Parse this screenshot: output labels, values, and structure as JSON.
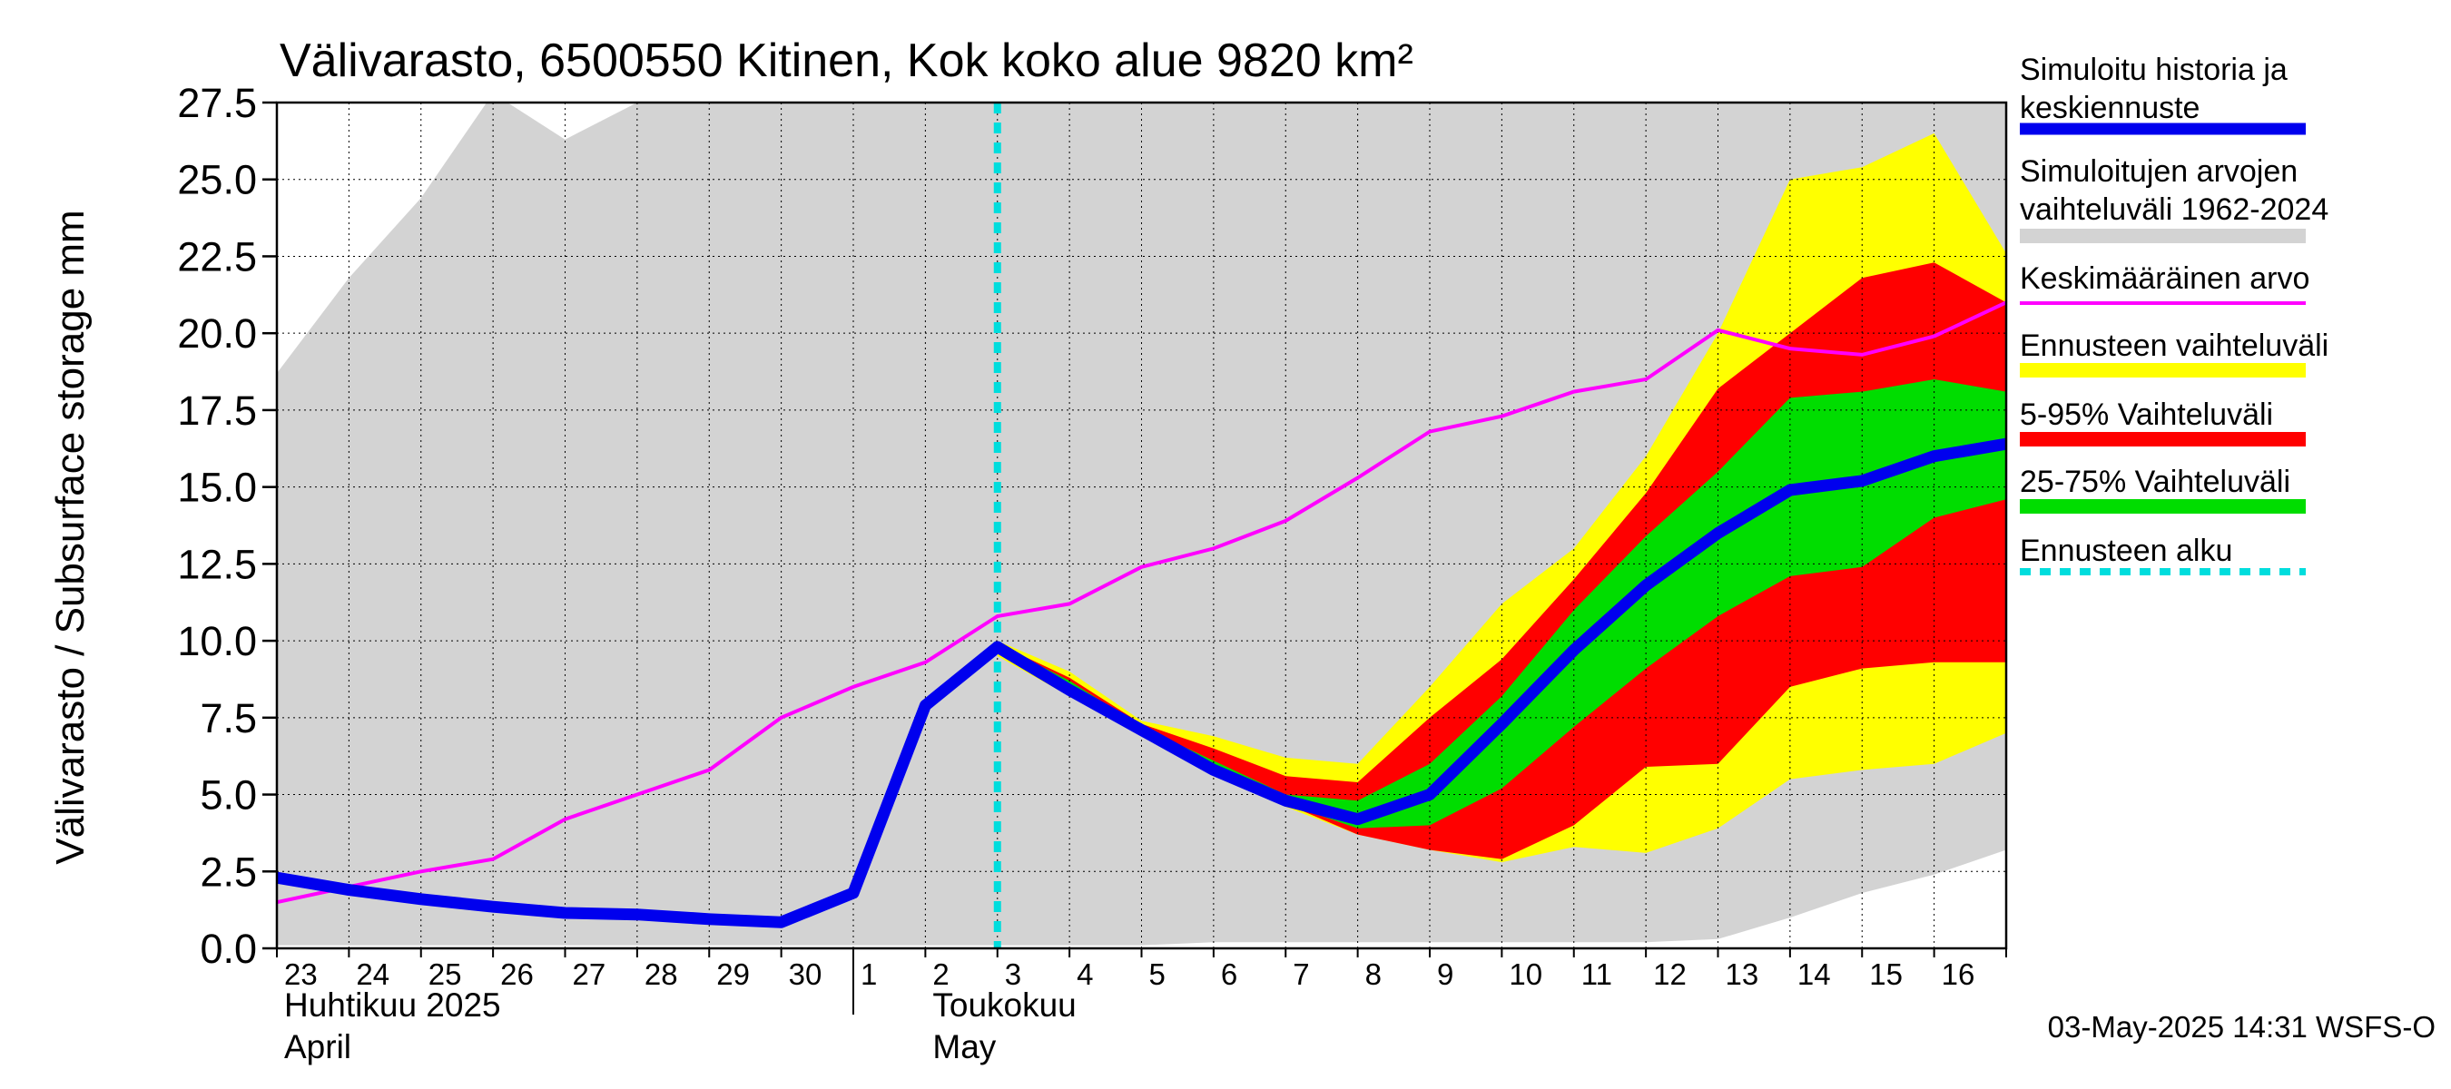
{
  "chart_data": {
    "type": "area",
    "title": "Välivarasto, 6500550 Kitinen, Kok koko alue 9820 km²",
    "ylabel": "Välivarasto / Subsurface storage  mm",
    "xlabel": "",
    "ylim": [
      0,
      27.5
    ],
    "yticks": [
      "0.0",
      "2.5",
      "5.0",
      "7.5",
      "10.0",
      "12.5",
      "15.0",
      "17.5",
      "20.0",
      "22.5",
      "25.0",
      "27.5"
    ],
    "grid": true,
    "legend_position": "right",
    "x_day_labels": [
      "23",
      "24",
      "25",
      "26",
      "27",
      "28",
      "29",
      "30",
      "1",
      "2",
      "3",
      "4",
      "5",
      "6",
      "7",
      "8",
      "9",
      "10",
      "11",
      "12",
      "13",
      "14",
      "15",
      "16"
    ],
    "month_labels": [
      {
        "fi": "Huhtikuu  2025",
        "en": "April"
      },
      {
        "fi": "Toukokuu",
        "en": "May"
      }
    ],
    "forecast_start_x": 10,
    "timestamp": "03-May-2025 14:31 WSFS-O",
    "colors": {
      "history_range": "#d3d3d3",
      "forecast_range": "#ffff00",
      "p5_95": "#ff0000",
      "p25_75": "#00dd00",
      "median": "#0000ee",
      "mean": "#ff00ff",
      "forecast_start": "#00dddd"
    },
    "legend": [
      {
        "label": "Simuloitu historia ja keskiennuste",
        "color": "#0000ee",
        "style": "thick"
      },
      {
        "label": "Simuloitujen arvojen vaihteluväli 1962-2024",
        "color": "#d3d3d3",
        "style": "band"
      },
      {
        "label": "Keskimääräinen arvo",
        "color": "#ff00ff",
        "style": "thin"
      },
      {
        "label": "Ennusteen vaihteluväli",
        "color": "#ffff00",
        "style": "band"
      },
      {
        "label": "5-95% Vaihteluväli",
        "color": "#ff0000",
        "style": "band"
      },
      {
        "label": "25-75% Vaihteluväli",
        "color": "#00dd00",
        "style": "band"
      },
      {
        "label": "Ennusteen alku",
        "color": "#00dddd",
        "style": "dashed"
      }
    ],
    "x": [
      0,
      1,
      2,
      3,
      4,
      5,
      6,
      7,
      8,
      9,
      10,
      11,
      12,
      13,
      14,
      15,
      16,
      17,
      18,
      19,
      20,
      21,
      22,
      23,
      24
    ],
    "history_range": {
      "upper": [
        18.7,
        21.8,
        24.4,
        27.8,
        26.3,
        27.5,
        27.5,
        27.5,
        27.5,
        27.5,
        27.5,
        27.5,
        27.5,
        27.5,
        27.5,
        27.5,
        27.5,
        27.5,
        27.5,
        27.5,
        27.5,
        27.5,
        27.5,
        27.5,
        27.5
      ],
      "lower": [
        0.1,
        0.1,
        0.1,
        0.1,
        0.1,
        0.1,
        0.1,
        0.1,
        0.1,
        0.1,
        0.1,
        0.1,
        0.1,
        0.2,
        0.2,
        0.2,
        0.2,
        0.2,
        0.2,
        0.2,
        0.3,
        1.0,
        1.8,
        2.4,
        3.2
      ]
    },
    "forecast_x": [
      10,
      11,
      12,
      13,
      14,
      15,
      16,
      17,
      18,
      19,
      20,
      21,
      22,
      23,
      24
    ],
    "forecast_range": {
      "upper": [
        10.0,
        9.0,
        7.4,
        6.9,
        6.2,
        6.0,
        8.5,
        11.2,
        13.0,
        16.0,
        20.0,
        25.0,
        25.4,
        26.5,
        22.6
      ],
      "lower": [
        9.5,
        8.2,
        6.9,
        5.6,
        4.6,
        3.7,
        3.2,
        2.8,
        3.3,
        3.1,
        3.9,
        5.5,
        5.8,
        6.0,
        7.0
      ]
    },
    "p5_95": {
      "upper": [
        9.9,
        8.8,
        7.3,
        6.5,
        5.6,
        5.4,
        7.5,
        9.4,
        12.0,
        14.8,
        18.2,
        20.0,
        21.8,
        22.3,
        21.0
      ],
      "lower": [
        9.6,
        8.3,
        7.0,
        5.8,
        4.7,
        3.7,
        3.2,
        2.9,
        4.0,
        5.9,
        6.0,
        8.5,
        9.1,
        9.3,
        9.3
      ]
    },
    "p25_75": {
      "upper": [
        9.9,
        8.7,
        7.2,
        6.1,
        5.0,
        4.8,
        6.0,
        8.2,
        11.0,
        13.4,
        15.5,
        17.9,
        18.1,
        18.5,
        18.1
      ],
      "lower": [
        9.7,
        8.4,
        7.0,
        5.9,
        4.7,
        3.9,
        4.0,
        5.2,
        7.2,
        9.1,
        10.8,
        12.1,
        12.4,
        14.0,
        14.6
      ]
    },
    "median": {
      "x": [
        0,
        1,
        2,
        3,
        4,
        5,
        6,
        7,
        8,
        9,
        10,
        11,
        12,
        13,
        14,
        15,
        16,
        17,
        18,
        19,
        20,
        21,
        22,
        23,
        24
      ],
      "values": [
        2.3,
        1.9,
        1.6,
        1.35,
        1.15,
        1.1,
        0.95,
        0.85,
        1.8,
        7.9,
        9.8,
        8.4,
        7.1,
        5.8,
        4.8,
        4.2,
        5.0,
        7.3,
        9.7,
        11.8,
        13.5,
        14.9,
        15.2,
        16.0,
        16.4
      ]
    },
    "mean": {
      "x": [
        0,
        1,
        2,
        3,
        4,
        5,
        6,
        7,
        8,
        9,
        10,
        11,
        12,
        13,
        14,
        15,
        16,
        17,
        18,
        19,
        20,
        21,
        22,
        23,
        24
      ],
      "values": [
        1.5,
        2.0,
        2.5,
        2.9,
        4.2,
        5.0,
        5.8,
        7.5,
        8.5,
        9.3,
        10.8,
        11.2,
        12.4,
        13.0,
        13.9,
        15.3,
        16.8,
        17.3,
        18.1,
        18.5,
        20.1,
        19.5,
        19.3,
        19.9,
        21.0
      ]
    }
  }
}
